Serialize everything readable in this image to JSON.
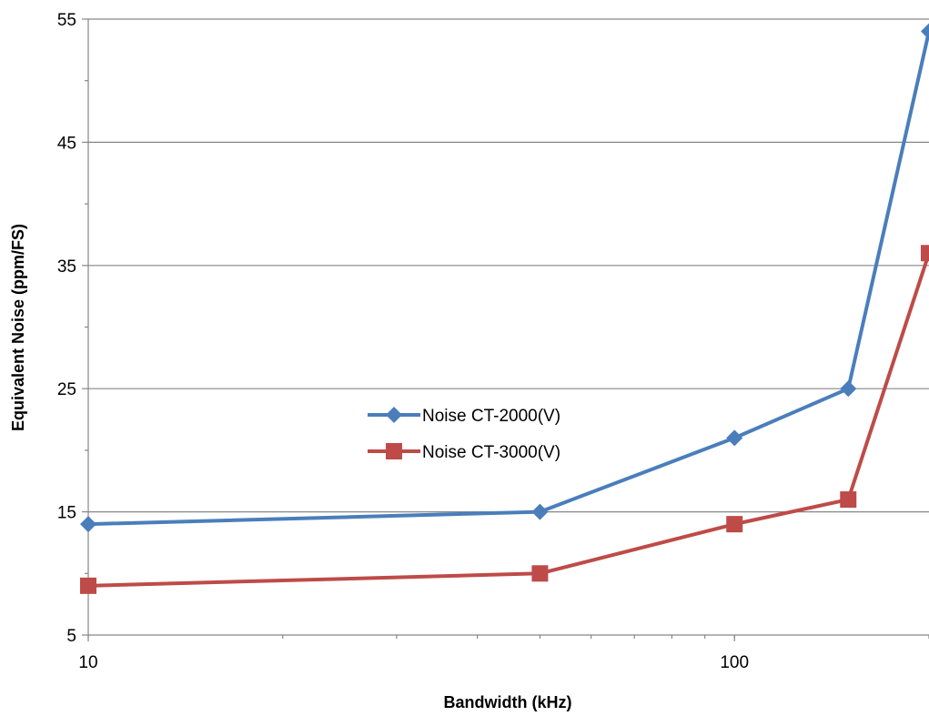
{
  "chart_data": {
    "type": "line",
    "xlabel": "Bandwidth (kHz)",
    "ylabel": "Equivalent Noise (ppm/FS)",
    "x_scale": "log",
    "xlim": [
      10,
      200
    ],
    "ylim": [
      5,
      55
    ],
    "y_major_ticks": [
      5,
      15,
      25,
      35,
      45,
      55
    ],
    "y_minor_ticks": [
      10,
      20,
      30,
      40,
      50
    ],
    "x_major_ticks": [
      10,
      100
    ],
    "grid": "horizontal major",
    "legend_position": "center",
    "x": [
      10,
      50,
      100,
      150,
      200
    ],
    "series": [
      {
        "name": "Noise CT-2000(V)",
        "color": "#4a7ebb",
        "marker": "diamond",
        "values": [
          14,
          15,
          21,
          25,
          54
        ]
      },
      {
        "name": "Noise CT-3000(V)",
        "color": "#be4b48",
        "marker": "square",
        "values": [
          9,
          10,
          14,
          16,
          36
        ]
      }
    ]
  }
}
